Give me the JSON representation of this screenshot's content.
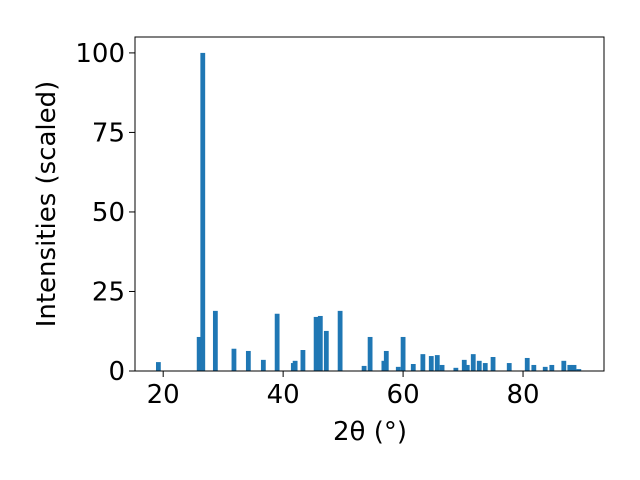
{
  "chart_data": {
    "type": "bar",
    "xlabel": "2θ (°)",
    "ylabel": "Intensities (scaled)",
    "color": "#1f77b4",
    "x": [
      19.2,
      26.0,
      26.6,
      28.7,
      31.8,
      34.2,
      36.7,
      39.0,
      41.7,
      42.0,
      43.3,
      45.5,
      46.2,
      47.2,
      49.5,
      53.5,
      54.5,
      56.8,
      57.2,
      59.2,
      60.0,
      61.7,
      63.3,
      64.7,
      65.7,
      66.5,
      68.8,
      70.2,
      70.7,
      71.7,
      72.7,
      73.7,
      75.0,
      77.7,
      80.7,
      81.8,
      83.7,
      84.8,
      86.8,
      87.8,
      88.5,
      89.3
    ],
    "values": [
      2.8,
      10.7,
      100,
      18.9,
      7,
      6.3,
      3.5,
      18,
      2.5,
      3.2,
      6.6,
      17,
      17.3,
      12.6,
      18.9,
      1.6,
      10.7,
      3.2,
      6.3,
      1.3,
      10.7,
      2.2,
      5.3,
      4.7,
      5,
      1.9,
      1,
      3.5,
      1.9,
      5.3,
      3.2,
      2.5,
      4.4,
      2.5,
      4.1,
      1.9,
      1.3,
      1.9,
      3.2,
      1.9,
      1.9,
      0.6
    ],
    "xlim": [
      15.3,
      93.5
    ],
    "xticks": [
      20,
      40,
      60,
      80
    ],
    "ylim": [
      0,
      105
    ],
    "yticks": [
      0,
      25,
      50,
      75,
      100
    ]
  }
}
